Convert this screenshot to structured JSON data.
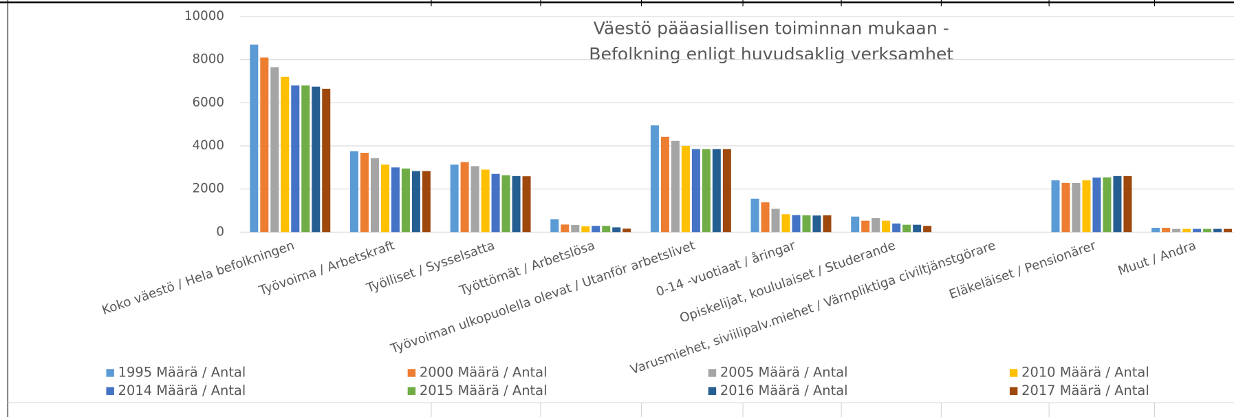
{
  "chart_data": {
    "type": "bar",
    "title": [
      "Väestö pääasiallisen toiminnan mukaan -",
      "Befolkning enligt huvudsaklig verksamhet"
    ],
    "categories": [
      "Koko väestö / Hela befolkningen",
      "Työvoima / Arbetskraft",
      "Työlliset / Sysselsatta",
      "Työttömät / Arbetslösa",
      "Työvoiman ulkopuolella olevat / Utanför arbetslivet",
      "0-14 -vuotiaat / åringar",
      "Opiskelijat, koululaiset / Studerande",
      "Varusmiehet, siviilipalv.miehet / Värnpliktiga civiltjänstgörare",
      "Eläkeläiset / Pensionärer",
      "Muut / Andra"
    ],
    "series": [
      {
        "name": "1995 Määrä / Antal",
        "color": "#5b9bd5",
        "values": [
          8700,
          3750,
          3130,
          600,
          4950,
          1550,
          720,
          0,
          2400,
          200
        ]
      },
      {
        "name": "2000 Määrä / Antal",
        "color": "#ed7d31",
        "values": [
          8100,
          3680,
          3250,
          350,
          4420,
          1380,
          530,
          0,
          2280,
          200
        ]
      },
      {
        "name": "2005 Määrä / Antal",
        "color": "#a5a5a5",
        "values": [
          7650,
          3430,
          3060,
          330,
          4230,
          1080,
          650,
          0,
          2280,
          150
        ]
      },
      {
        "name": "2010 Määrä / Antal",
        "color": "#ffc000",
        "values": [
          7200,
          3130,
          2900,
          270,
          4000,
          830,
          530,
          0,
          2400,
          150
        ]
      },
      {
        "name": "2014 Määrä / Antal",
        "color": "#4472c4",
        "values": [
          6800,
          3000,
          2700,
          290,
          3850,
          790,
          400,
          0,
          2530,
          150
        ]
      },
      {
        "name": "2015 Määrä / Antal",
        "color": "#70ad47",
        "values": [
          6800,
          2950,
          2640,
          290,
          3850,
          780,
          340,
          0,
          2540,
          150
        ]
      },
      {
        "name": "2016 Määrä / Antal",
        "color": "#255e91",
        "values": [
          6750,
          2830,
          2600,
          220,
          3850,
          770,
          340,
          0,
          2600,
          150
        ]
      },
      {
        "name": "2017 Määrä / Antal",
        "color": "#9e480e",
        "values": [
          6650,
          2830,
          2590,
          160,
          3850,
          780,
          290,
          0,
          2600,
          150
        ]
      }
    ],
    "ylim": [
      0,
      10000
    ],
    "yticks": [
      0,
      2000,
      4000,
      6000,
      8000,
      10000
    ],
    "grid": true
  }
}
